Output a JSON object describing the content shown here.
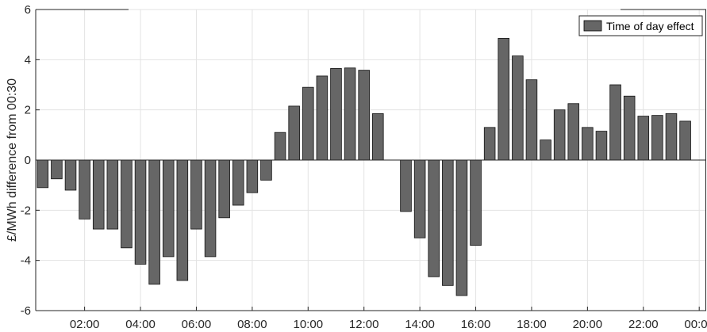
{
  "chart_data": {
    "type": "bar",
    "ylabel": "£/MWh difference from 00:30",
    "xlabel": "",
    "ylim": [
      -6,
      6
    ],
    "yticks": [
      -6,
      -4,
      -2,
      0,
      2,
      4,
      6
    ],
    "xtick_labels": [
      "02:00",
      "04:00",
      "06:00",
      "08:00",
      "10:00",
      "12:00",
      "14:00",
      "16:00",
      "18:00",
      "20:00",
      "22:00",
      "00:00"
    ],
    "xtick_positions": [
      4,
      8,
      12,
      16,
      20,
      24,
      28,
      32,
      36,
      40,
      44,
      48
    ],
    "x": [
      1,
      2,
      3,
      4,
      5,
      6,
      7,
      8,
      9,
      10,
      11,
      12,
      13,
      14,
      15,
      16,
      17,
      18,
      19,
      20,
      21,
      22,
      23,
      24,
      25,
      26,
      27,
      28,
      29,
      30,
      31,
      32,
      33,
      34,
      35,
      36,
      37,
      38,
      39,
      40,
      41,
      42,
      43,
      44,
      45,
      46,
      47
    ],
    "grid": true,
    "legend_position": "top-right",
    "series": [
      {
        "name": "Time of day effect",
        "color": "#666666",
        "values": [
          -1.1,
          -0.75,
          -1.2,
          -2.35,
          -2.75,
          -2.75,
          -3.5,
          -4.15,
          -4.95,
          -3.85,
          -4.8,
          -2.75,
          -3.85,
          -2.3,
          -1.8,
          -1.3,
          -0.8,
          1.1,
          2.15,
          2.9,
          3.35,
          3.65,
          3.67,
          3.58,
          1.85,
          0.0,
          -2.05,
          -3.1,
          -4.65,
          -5.0,
          -5.4,
          -3.4,
          1.3,
          4.85,
          4.15,
          3.2,
          0.8,
          2.0,
          2.25,
          1.3,
          1.15,
          3.0,
          2.55,
          1.75,
          1.78,
          1.85,
          1.55
        ]
      }
    ]
  }
}
